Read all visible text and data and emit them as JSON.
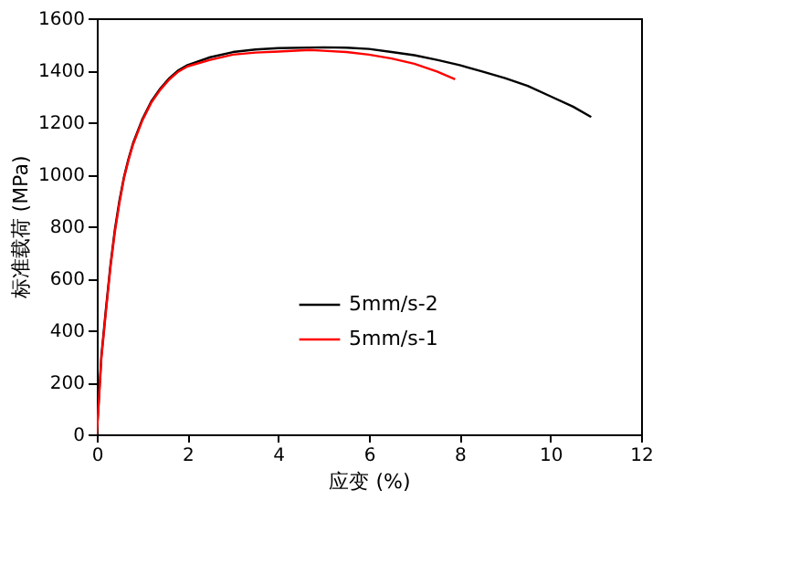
{
  "chart_data": {
    "type": "line",
    "xlabel": "应变 (%)",
    "ylabel": "标准载荷 (MPa)",
    "xlim": [
      0,
      12
    ],
    "xticks": [
      0,
      2,
      4,
      6,
      8,
      10,
      12
    ],
    "ylim": [
      0,
      1600
    ],
    "yticks": [
      0,
      200,
      400,
      600,
      800,
      1000,
      1200,
      1400,
      1600
    ],
    "grid": false,
    "legend": "right",
    "marker": "none",
    "line_style": "solid",
    "series": [
      {
        "name": "5mm/s-2",
        "color": "#000000",
        "x": [
          0,
          0.05,
          0.1,
          0.2,
          0.3,
          0.4,
          0.5,
          0.6,
          0.7,
          0.8,
          1.0,
          1.2,
          1.4,
          1.6,
          1.8,
          2,
          2.5,
          3,
          3.5,
          4,
          5,
          5.5,
          6,
          6.5,
          7,
          7.5,
          8,
          8.5,
          9,
          9.5,
          10,
          10.5,
          10.9
        ],
        "values": [
          0,
          150,
          300,
          480,
          650,
          790,
          900,
          990,
          1060,
          1120,
          1210,
          1280,
          1330,
          1370,
          1400,
          1420,
          1450,
          1470,
          1480,
          1485,
          1488,
          1487,
          1482,
          1470,
          1458,
          1440,
          1420,
          1395,
          1370,
          1340,
          1300,
          1260,
          1220
        ]
      },
      {
        "name": "5mm/s-1",
        "color": "#ff0000",
        "x": [
          0,
          0.05,
          0.1,
          0.2,
          0.3,
          0.4,
          0.5,
          0.6,
          0.7,
          0.8,
          1.0,
          1.2,
          1.4,
          1.6,
          1.8,
          2,
          2.5,
          3,
          3.5,
          4,
          4.7,
          5,
          5.5,
          6,
          6.5,
          7,
          7.5,
          7.9
        ],
        "values": [
          0,
          140,
          290,
          470,
          640,
          780,
          890,
          985,
          1055,
          1115,
          1205,
          1275,
          1325,
          1365,
          1395,
          1415,
          1440,
          1460,
          1468,
          1472,
          1478,
          1475,
          1470,
          1460,
          1445,
          1425,
          1395,
          1365
        ]
      }
    ]
  }
}
